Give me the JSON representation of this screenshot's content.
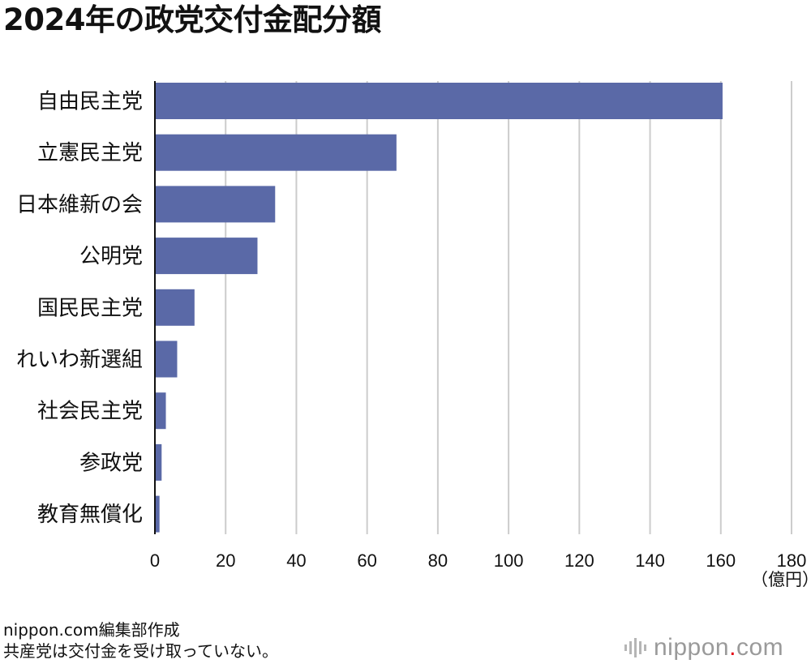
{
  "chart_data": {
    "type": "bar",
    "orientation": "horizontal",
    "title": "2024年の政党交付金配分額",
    "categories": [
      "自由民主党",
      "立憲民主党",
      "日本維新の会",
      "公明党",
      "国民民主党",
      "れいわ新選組",
      "社会民主党",
      "参政党",
      "教育無償化"
    ],
    "values": [
      160.5,
      68.3,
      34,
      29,
      11.2,
      6.3,
      3.1,
      1.9,
      1.3
    ],
    "xlim": [
      0,
      180
    ],
    "xticks": [
      0,
      20,
      40,
      60,
      80,
      100,
      120,
      140,
      160,
      180
    ],
    "unit_label": "（億円）",
    "grid": true,
    "bar_color": "#5a69a7",
    "grid_color": "#cccccc"
  },
  "notes": {
    "source": "nippon.com編集部作成",
    "footnote": "共産党は交付金を受け取っていない。"
  },
  "brand": {
    "name": "nippon",
    "dot": ".",
    "suffix": "com",
    "dot_color": "#e60012"
  }
}
